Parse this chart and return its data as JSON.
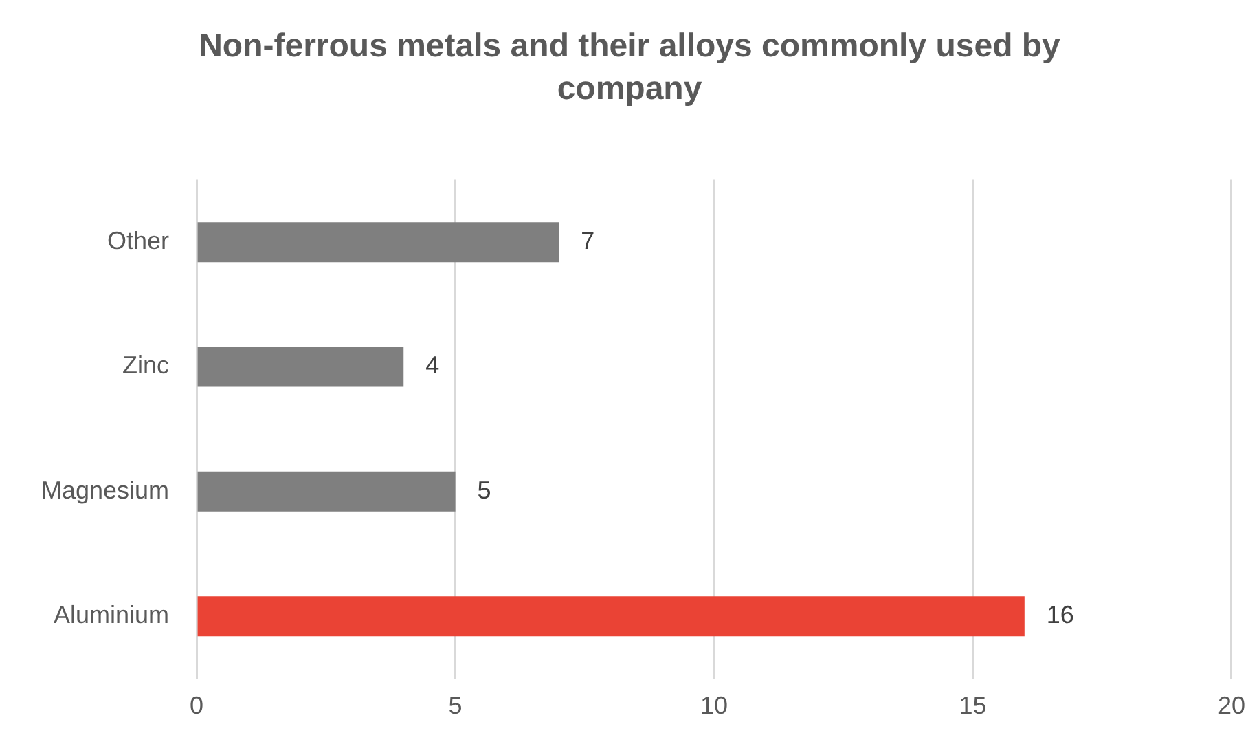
{
  "chart_data": {
    "type": "bar",
    "orientation": "horizontal",
    "title": "Non-ferrous metals and their alloys commonly used by company",
    "categories": [
      "Other",
      "Zinc",
      "Magnesium",
      "Aluminium"
    ],
    "values": [
      7,
      4,
      5,
      16
    ],
    "colors": [
      "#7f7f7f",
      "#7f7f7f",
      "#7f7f7f",
      "#ea4335"
    ],
    "xlim": [
      0,
      20
    ],
    "xticks": [
      0,
      5,
      10,
      15,
      20
    ],
    "grid": "x",
    "data_labels": true,
    "legend": false
  }
}
